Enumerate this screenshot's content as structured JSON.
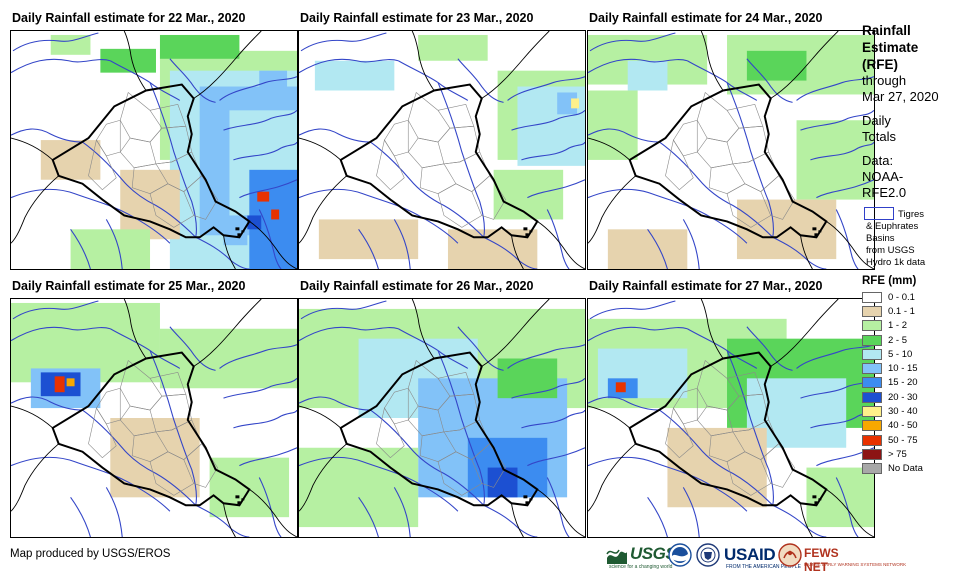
{
  "panels": [
    {
      "title": "Daily Rainfall estimate for 22 Mar., 2020"
    },
    {
      "title": "Daily Rainfall estimate for 23 Mar., 2020"
    },
    {
      "title": "Daily Rainfall estimate for 24 Mar., 2020"
    },
    {
      "title": "Daily Rainfall estimate for 25 Mar., 2020"
    },
    {
      "title": "Daily Rainfall estimate for 26 Mar., 2020"
    },
    {
      "title": "Daily Rainfall estimate for 27 Mar., 2020"
    }
  ],
  "legend": {
    "title_lines": [
      "Rainfall",
      "Estimate",
      "(RFE)"
    ],
    "through": "through",
    "through_date": "Mar 27, 2020",
    "period_lines": [
      "Daily",
      "Totals"
    ],
    "data_lines": [
      "Data:",
      "NOAA-",
      "RFE2.0"
    ],
    "basin_lines": [
      "Tigres",
      "& Euphrates",
      "Basins",
      "from USGS",
      "Hydro 1k data"
    ],
    "rfe_title": "RFE (mm)",
    "rfe_classes": [
      {
        "label": "0 - 0.1",
        "color": "#ffffff"
      },
      {
        "label": "0.1 - 1",
        "color": "#e6d3ae"
      },
      {
        "label": "1 - 2",
        "color": "#b6f0a2"
      },
      {
        "label": "2 - 5",
        "color": "#5ad55a"
      },
      {
        "label": "5 - 10",
        "color": "#b2e8f2"
      },
      {
        "label": "10 - 15",
        "color": "#82c2f8"
      },
      {
        "label": "15 - 20",
        "color": "#3c8cf0"
      },
      {
        "label": "20 - 30",
        "color": "#1c50d2"
      },
      {
        "label": "30 - 40",
        "color": "#fff08a"
      },
      {
        "label": "40 - 50",
        "color": "#f8a800"
      },
      {
        "label": "50 - 75",
        "color": "#e83200"
      },
      {
        "label": "> 75",
        "color": "#8c1414"
      },
      {
        "label": "No Data",
        "color": "#a8a8a8"
      }
    ]
  },
  "footer": {
    "credit": "Map produced by USGS/EROS"
  },
  "logos": {
    "usgs": "USGS",
    "usgs_tagline": "science for a changing world",
    "usaid": "USAID",
    "usaid_tagline": "FROM THE AMERICAN PEOPLE",
    "fews": "FEWS NET",
    "fews_tagline": "FAMINE EARLY WARNING SYSTEMS NETWORK"
  },
  "colors": {
    "river": "#3446c8",
    "border": "#000000",
    "admin": "#8a8a8a"
  }
}
